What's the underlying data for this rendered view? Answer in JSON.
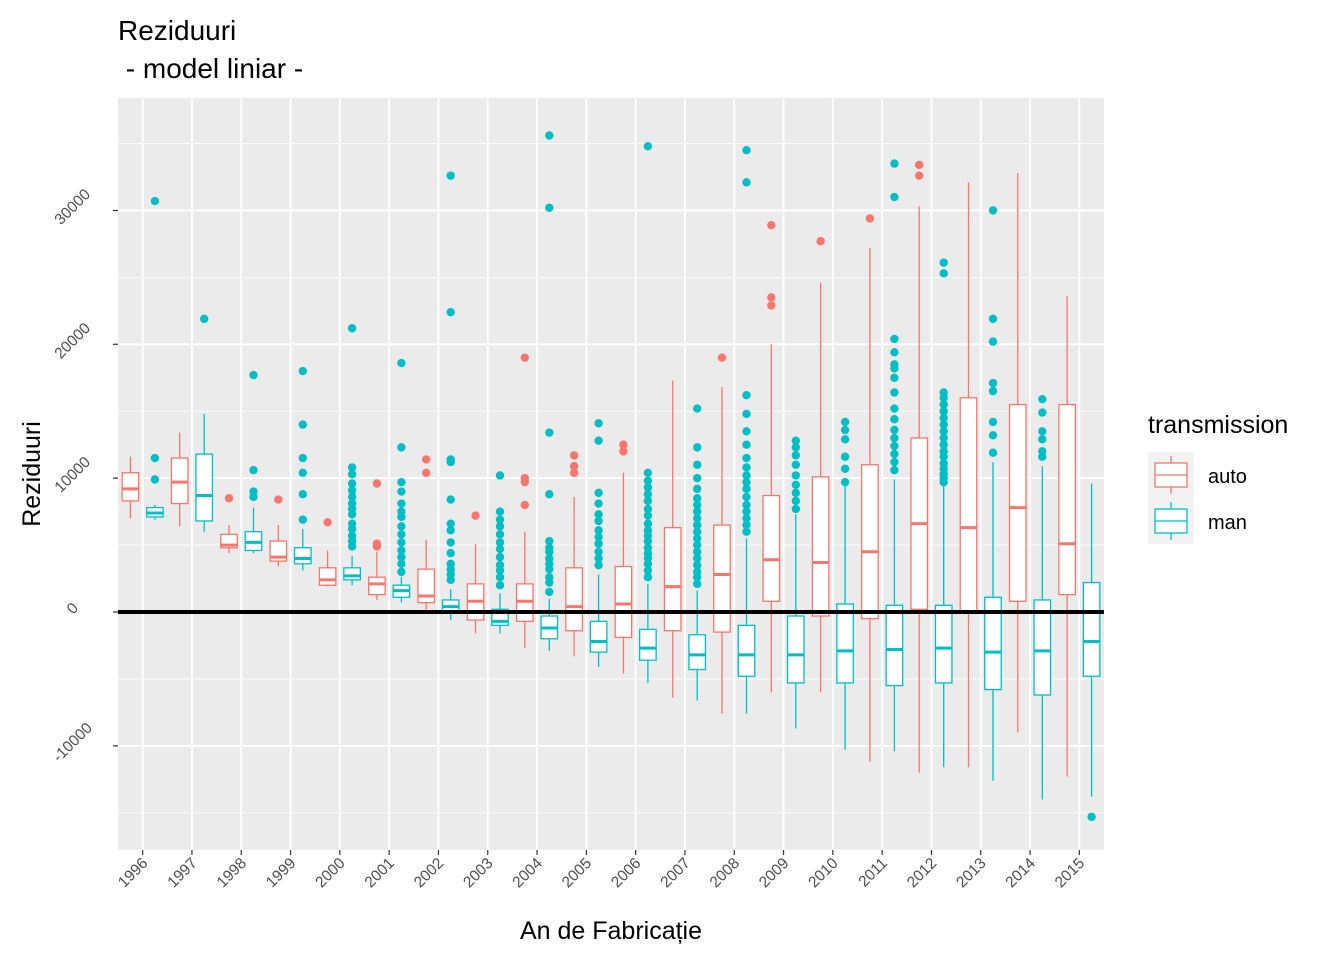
{
  "chart_data": {
    "type": "boxplot",
    "title_line1": "Reziduuri",
    "title_line2": " - model liniar -",
    "xlabel": "An de Fabricație",
    "ylabel": "Reziduuri",
    "ylim": [
      -17500,
      38000
    ],
    "yticks": [
      -10000,
      0,
      10000,
      20000,
      30000
    ],
    "ytick_labels": [
      "-10000",
      "0",
      "10000",
      "20000",
      "30000"
    ],
    "reference_line": 0,
    "grid": true,
    "legend_position": "right",
    "legend": {
      "title": "transmission",
      "items": [
        {
          "label": "auto",
          "color": "#F8766D"
        },
        {
          "label": "man",
          "color": "#00BFC4"
        }
      ]
    },
    "categories": [
      "1996",
      "1997",
      "1998",
      "1999",
      "2000",
      "2001",
      "2002",
      "2003",
      "2004",
      "2005",
      "2006",
      "2007",
      "2008",
      "2009",
      "2010",
      "2011",
      "2012",
      "2013",
      "2014",
      "2015"
    ],
    "series": [
      {
        "name": "auto",
        "color": "#F8766D",
        "boxes": [
          {
            "q1": 8300,
            "median": 9200,
            "q3": 10400,
            "lower": 7000,
            "upper": 11600,
            "outliers": []
          },
          {
            "q1": 8100,
            "median": 9700,
            "q3": 11500,
            "lower": 6400,
            "upper": 13400,
            "outliers": []
          },
          {
            "q1": 4800,
            "median": 5000,
            "q3": 5800,
            "lower": 4400,
            "upper": 6500,
            "outliers": [
              8500
            ]
          },
          {
            "q1": 3800,
            "median": 4100,
            "q3": 5300,
            "lower": 3400,
            "upper": 6500,
            "outliers": [
              8400
            ]
          },
          {
            "q1": 2000,
            "median": 2400,
            "q3": 3300,
            "lower": 1900,
            "upper": 4600,
            "outliers": [
              6700
            ]
          },
          {
            "q1": 1300,
            "median": 2100,
            "q3": 2600,
            "lower": 900,
            "upper": 4500,
            "outliers": [
              4900,
              5100,
              9600
            ]
          },
          {
            "q1": 700,
            "median": 1200,
            "q3": 3200,
            "lower": -100,
            "upper": 5400,
            "outliers": [
              10400,
              11400
            ]
          },
          {
            "q1": -600,
            "median": 800,
            "q3": 2100,
            "lower": -1600,
            "upper": 5100,
            "outliers": [
              7200
            ]
          },
          {
            "q1": -700,
            "median": 800,
            "q3": 2100,
            "lower": -2700,
            "upper": 6000,
            "outliers": [
              8000,
              9700,
              10000,
              19000
            ]
          },
          {
            "q1": -1400,
            "median": 400,
            "q3": 3300,
            "lower": -3300,
            "upper": 8600,
            "outliers": [
              10400,
              10900,
              11700
            ]
          },
          {
            "q1": -1900,
            "median": 600,
            "q3": 3400,
            "lower": -4600,
            "upper": 10400,
            "outliers": [
              12000,
              12500
            ]
          },
          {
            "q1": -1400,
            "median": 1900,
            "q3": 6300,
            "lower": -6400,
            "upper": 17300,
            "outliers": []
          },
          {
            "q1": -1500,
            "median": 2800,
            "q3": 6500,
            "lower": -7600,
            "upper": 16800,
            "outliers": [
              19000
            ]
          },
          {
            "q1": 800,
            "median": 3900,
            "q3": 8700,
            "lower": -6000,
            "upper": 20000,
            "outliers": [
              22900,
              23500,
              28900
            ]
          },
          {
            "q1": -300,
            "median": 3700,
            "q3": 10100,
            "lower": -6000,
            "upper": 24600,
            "outliers": [
              27700
            ]
          },
          {
            "q1": -500,
            "median": 4500,
            "q3": 11000,
            "lower": -11200,
            "upper": 27200,
            "outliers": [
              29400
            ]
          },
          {
            "q1": 200,
            "median": 6600,
            "q3": 13000,
            "lower": -12000,
            "upper": 30300,
            "outliers": [
              32600,
              33400
            ]
          },
          {
            "q1": 0,
            "median": 6300,
            "q3": 16000,
            "lower": -11600,
            "upper": 32100,
            "outliers": []
          },
          {
            "q1": 800,
            "median": 7800,
            "q3": 15500,
            "lower": -9000,
            "upper": 32800,
            "outliers": []
          },
          {
            "q1": 1300,
            "median": 5100,
            "q3": 15500,
            "lower": -12300,
            "upper": 23600,
            "outliers": []
          }
        ]
      },
      {
        "name": "man",
        "color": "#00BFC4",
        "boxes": [
          {
            "q1": 7100,
            "median": 7400,
            "q3": 7800,
            "lower": 6900,
            "upper": 8000,
            "outliers": [
              9900,
              11500,
              30700
            ]
          },
          {
            "q1": 6800,
            "median": 8700,
            "q3": 11800,
            "lower": 6000,
            "upper": 14800,
            "outliers": [
              21900
            ]
          },
          {
            "q1": 4600,
            "median": 5200,
            "q3": 6000,
            "lower": 4400,
            "upper": 7800,
            "outliers": [
              8600,
              9000,
              10600,
              17700
            ]
          },
          {
            "q1": 3600,
            "median": 4000,
            "q3": 4800,
            "lower": 3100,
            "upper": 6200,
            "outliers": [
              6900,
              8800,
              10400,
              11500,
              14000,
              18000
            ]
          },
          {
            "q1": 2400,
            "median": 2700,
            "q3": 3300,
            "lower": 2000,
            "upper": 4200,
            "outliers": [
              4900,
              5300,
              5700,
              6200,
              6600,
              7300,
              7700,
              8100,
              8600,
              9100,
              9600,
              10300,
              10800,
              21200
            ]
          },
          {
            "q1": 1100,
            "median": 1600,
            "q3": 2000,
            "lower": 700,
            "upper": 2600,
            "outliers": [
              3000,
              3600,
              4100,
              4600,
              5200,
              5800,
              6400,
              7100,
              7500,
              8100,
              9000,
              9700,
              12300,
              18600
            ]
          },
          {
            "q1": 100,
            "median": 400,
            "q3": 900,
            "lower": -600,
            "upper": 1700,
            "outliers": [
              2400,
              2800,
              3200,
              3600,
              4400,
              5200,
              6100,
              6600,
              8400,
              11200,
              11400,
              22400,
              32600
            ]
          },
          {
            "q1": -1000,
            "median": -700,
            "q3": 200,
            "lower": -1600,
            "upper": 1400,
            "outliers": [
              2000,
              2600,
              3100,
              3500,
              4100,
              4700,
              5200,
              5800,
              6400,
              6900,
              7500,
              10200
            ]
          },
          {
            "q1": -2000,
            "median": -1200,
            "q3": -300,
            "lower": -2900,
            "upper": 1000,
            "outliers": [
              1500,
              2200,
              2600,
              3200,
              3600,
              4000,
              4500,
              4800,
              5300,
              8800,
              13400,
              30200,
              35600
            ]
          },
          {
            "q1": -3000,
            "median": -2200,
            "q3": -700,
            "lower": -4100,
            "upper": 2800,
            "outliers": [
              3500,
              4000,
              4500,
              5100,
              5600,
              6100,
              6800,
              7300,
              8100,
              8900,
              12800,
              14100
            ]
          },
          {
            "q1": -3600,
            "median": -2700,
            "q3": -1300,
            "lower": -5300,
            "upper": 2100,
            "outliers": [
              2600,
              3100,
              3600,
              4000,
              4400,
              4800,
              5300,
              5700,
              6100,
              6600,
              7200,
              7700,
              8300,
              8800,
              9300,
              9800,
              10400,
              34800
            ]
          },
          {
            "q1": -4300,
            "median": -3200,
            "q3": -1700,
            "lower": -6600,
            "upper": 1600,
            "outliers": [
              2100,
              2600,
              3000,
              3500,
              4000,
              4500,
              5000,
              5500,
              6000,
              6500,
              7000,
              7500,
              8000,
              8500,
              9200,
              10000,
              11000,
              12300,
              15200
            ]
          },
          {
            "q1": -4800,
            "median": -3200,
            "q3": -1000,
            "lower": -7600,
            "upper": 5500,
            "outliers": [
              6000,
              6500,
              7000,
              7500,
              8000,
              8600,
              9200,
              9700,
              10200,
              10800,
              11500,
              12500,
              13500,
              14800,
              16200,
              32100,
              34500
            ]
          },
          {
            "q1": -5300,
            "median": -3200,
            "q3": -300,
            "lower": -8700,
            "upper": 7300,
            "outliers": [
              7700,
              8300,
              8900,
              9500,
              10200,
              11000,
              11700,
              12300,
              12800
            ]
          },
          {
            "q1": -5300,
            "median": -2900,
            "q3": 600,
            "lower": -10300,
            "upper": 9400,
            "outliers": [
              9700,
              10700,
              11600,
              12900,
              13600,
              14200
            ]
          },
          {
            "q1": -5500,
            "median": -2800,
            "q3": 500,
            "lower": -10400,
            "upper": 9900,
            "outliers": [
              10600,
              11200,
              11800,
              12400,
              13000,
              13600,
              14400,
              15200,
              16400,
              17500,
              18200,
              18500,
              19400,
              20400,
              31000,
              33500
            ]
          },
          {
            "q1": -5300,
            "median": -2700,
            "q3": 500,
            "lower": -11600,
            "upper": 9400,
            "outliers": [
              9700,
              10000,
              10300,
              10700,
              11100,
              11600,
              12000,
              12500,
              13000,
              13500,
              14000,
              14500,
              15000,
              15500,
              16000,
              16400,
              25300,
              26100
            ]
          },
          {
            "q1": -5800,
            "median": -3000,
            "q3": 1100,
            "lower": -12600,
            "upper": 11200,
            "outliers": [
              11900,
              13200,
              14200,
              16500,
              17100,
              20200,
              21900,
              30000
            ]
          },
          {
            "q1": -6200,
            "median": -2900,
            "q3": 900,
            "lower": -14000,
            "upper": 10900,
            "outliers": [
              11600,
              12000,
              12900,
              13500,
              14900,
              15900
            ]
          },
          {
            "q1": -4800,
            "median": -2200,
            "q3": 2200,
            "lower": -13800,
            "upper": 9600,
            "outliers": [
              -15300
            ]
          }
        ]
      }
    ]
  }
}
